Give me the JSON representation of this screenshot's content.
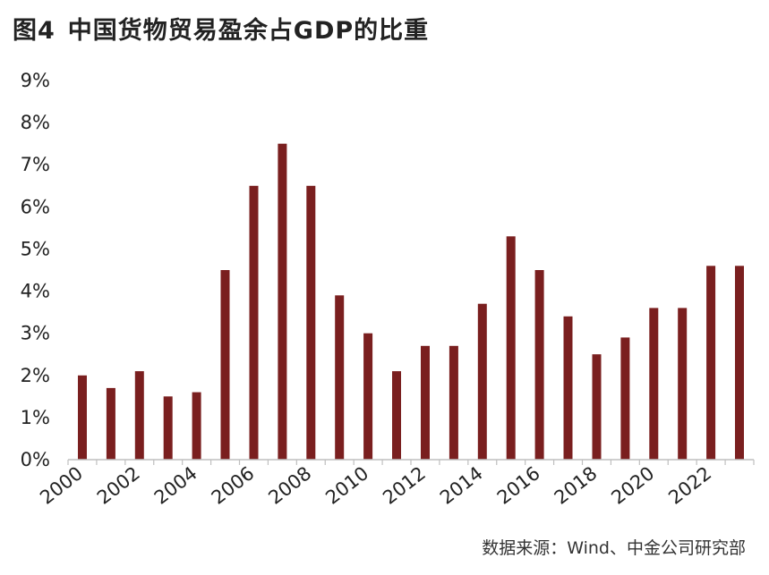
{
  "header": {
    "figure_label": "图4",
    "title": "中国货物贸易盈余占GDP的比重"
  },
  "source": {
    "text": "数据来源：Wind、中金公司研究部"
  },
  "colors": {
    "bar": "#7a1f1f",
    "axis": "#bfbfbf",
    "text": "#222222"
  },
  "chart_data": {
    "type": "bar",
    "title": "中国货物贸易盈余占GDP的比重",
    "xlabel": "",
    "ylabel": "",
    "categories": [
      2000,
      2001,
      2002,
      2003,
      2004,
      2005,
      2006,
      2007,
      2008,
      2009,
      2010,
      2011,
      2012,
      2013,
      2014,
      2015,
      2016,
      2017,
      2018,
      2019,
      2020,
      2021,
      2022,
      2023
    ],
    "values": [
      2.0,
      1.7,
      2.1,
      1.5,
      1.6,
      4.5,
      6.5,
      7.5,
      6.5,
      3.9,
      3.0,
      2.1,
      2.7,
      2.7,
      3.7,
      5.3,
      4.5,
      3.4,
      2.5,
      2.9,
      3.6,
      3.6,
      4.6,
      4.6
    ],
    "x_tick_labels": [
      "2000",
      "2002",
      "2004",
      "2006",
      "2008",
      "2010",
      "2012",
      "2014",
      "2016",
      "2018",
      "2020",
      "2022"
    ],
    "y_tick_labels": [
      "0%",
      "1%",
      "2%",
      "3%",
      "4%",
      "5%",
      "6%",
      "7%",
      "8%",
      "9%"
    ],
    "ylim": [
      0,
      9
    ],
    "grid": false,
    "legend": "none"
  }
}
